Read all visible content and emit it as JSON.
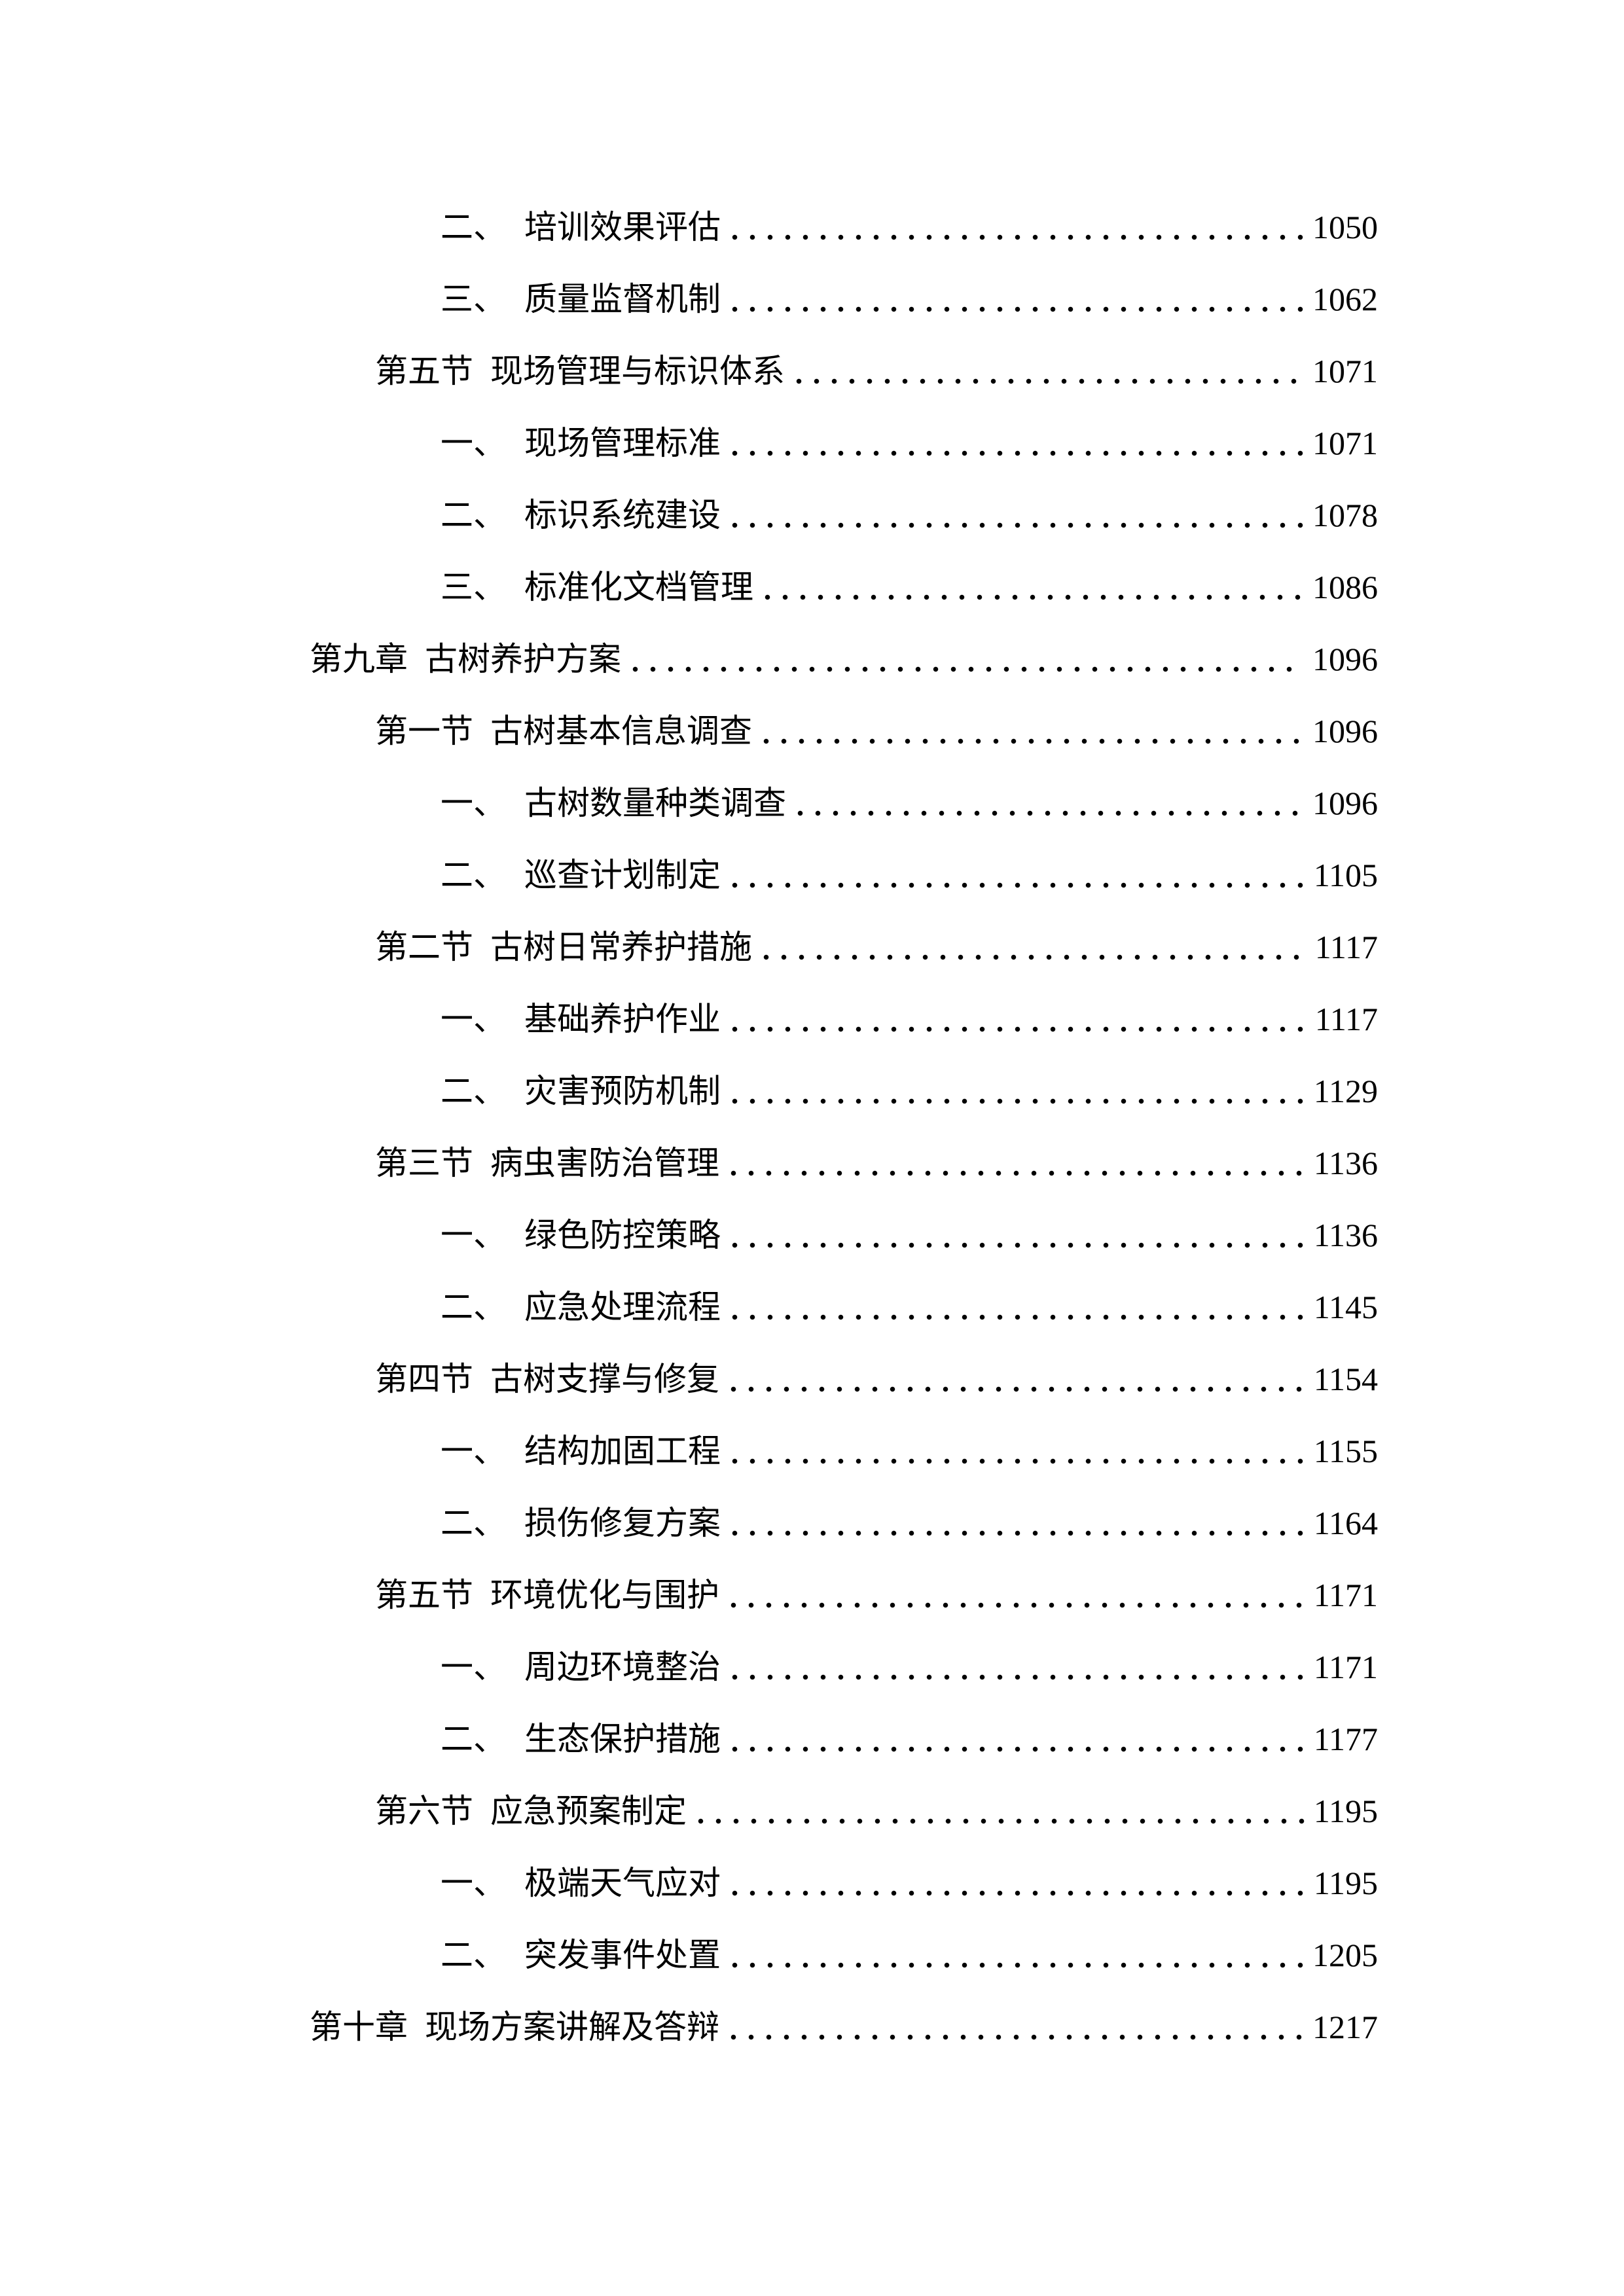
{
  "colors": {
    "text": "#000000",
    "background": "#ffffff"
  },
  "document": {
    "toc_entries": [
      {
        "level": "item",
        "label": "二、",
        "title": "培训效果评估",
        "page": "1050"
      },
      {
        "level": "item",
        "label": "三、",
        "title": "质量监督机制",
        "page": "1062"
      },
      {
        "level": "section",
        "label": "第五节",
        "title": "现场管理与标识体系",
        "page": "1071"
      },
      {
        "level": "item",
        "label": "一、",
        "title": "现场管理标准",
        "page": "1071"
      },
      {
        "level": "item",
        "label": "二、",
        "title": "标识系统建设",
        "page": "1078"
      },
      {
        "level": "item",
        "label": "三、",
        "title": "标准化文档管理",
        "page": "1086"
      },
      {
        "level": "chapter",
        "label": "第九章",
        "title": "古树养护方案",
        "page": "1096"
      },
      {
        "level": "section",
        "label": "第一节",
        "title": "古树基本信息调查",
        "page": "1096"
      },
      {
        "level": "item",
        "label": "一、",
        "title": "古树数量种类调查",
        "page": "1096"
      },
      {
        "level": "item",
        "label": "二、",
        "title": "巡查计划制定",
        "page": "1105"
      },
      {
        "level": "section",
        "label": "第二节",
        "title": "古树日常养护措施",
        "page": "1117"
      },
      {
        "level": "item",
        "label": "一、",
        "title": "基础养护作业",
        "page": "1117"
      },
      {
        "level": "item",
        "label": "二、",
        "title": "灾害预防机制",
        "page": "1129"
      },
      {
        "level": "section",
        "label": "第三节",
        "title": "病虫害防治管理",
        "page": "1136"
      },
      {
        "level": "item",
        "label": "一、",
        "title": "绿色防控策略",
        "page": "1136"
      },
      {
        "level": "item",
        "label": "二、",
        "title": "应急处理流程",
        "page": "1145"
      },
      {
        "level": "section",
        "label": "第四节",
        "title": "古树支撑与修复",
        "page": "1154"
      },
      {
        "level": "item",
        "label": "一、",
        "title": "结构加固工程",
        "page": "1155"
      },
      {
        "level": "item",
        "label": "二、",
        "title": "损伤修复方案",
        "page": "1164"
      },
      {
        "level": "section",
        "label": "第五节",
        "title": "环境优化与围护",
        "page": "1171"
      },
      {
        "level": "item",
        "label": "一、",
        "title": "周边环境整治",
        "page": "1171"
      },
      {
        "level": "item",
        "label": "二、",
        "title": "生态保护措施",
        "page": "1177"
      },
      {
        "level": "section",
        "label": "第六节",
        "title": "应急预案制定",
        "page": "1195"
      },
      {
        "level": "item",
        "label": "一、",
        "title": "极端天气应对",
        "page": "1195"
      },
      {
        "level": "item",
        "label": "二、",
        "title": "突发事件处置",
        "page": "1205"
      },
      {
        "level": "chapter",
        "label": "第十章",
        "title": "现场方案讲解及答辩",
        "page": "1217"
      }
    ]
  }
}
